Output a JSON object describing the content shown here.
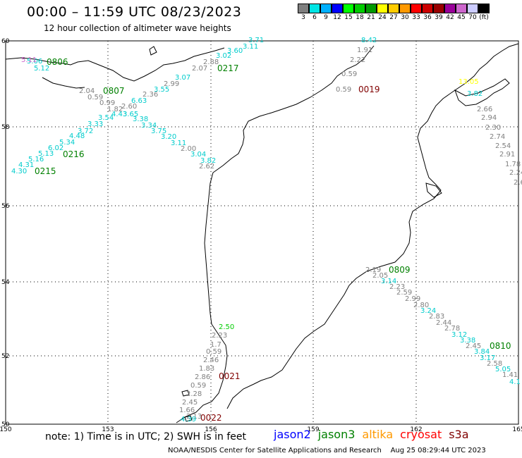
{
  "header": {
    "title": "00:00 – 11:59 UTC 08/23/2023",
    "subtitle": "12 hour collection of altimeter wave heights"
  },
  "scale": {
    "colors": [
      "#7f7f7f",
      "#00e5e5",
      "#00b0ff",
      "#0000ff",
      "#00ff00",
      "#00cc00",
      "#009900",
      "#ffff00",
      "#ffcc00",
      "#ff9900",
      "#ff0000",
      "#cc0000",
      "#990000",
      "#990099",
      "#cc66cc",
      "#ccccff",
      "#000000"
    ],
    "labels": [
      "3",
      "6",
      "9",
      "12",
      "15",
      "18",
      "21",
      "24",
      "27",
      "30",
      "33",
      "36",
      "39",
      "42",
      "45",
      "70",
      "(ft)"
    ]
  },
  "axes": {
    "lon_labels": [
      "150",
      "153",
      "156",
      "159",
      "162",
      "165"
    ],
    "lat_labels": [
      "60",
      "58",
      "56",
      "54",
      "52",
      "50"
    ]
  },
  "pass_labels": [
    {
      "text": "0806",
      "color": "#008000"
    },
    {
      "text": "0217",
      "color": "#008000"
    },
    {
      "text": "0807",
      "color": "#008000"
    },
    {
      "text": "0019",
      "color": "#800000"
    },
    {
      "text": "0216",
      "color": "#008000"
    },
    {
      "text": "0215",
      "color": "#008000"
    },
    {
      "text": "0809",
      "color": "#008000"
    },
    {
      "text": "0810",
      "color": "#008000"
    },
    {
      "text": "0021",
      "color": "#800000"
    },
    {
      "text": "0022",
      "color": "#800000"
    }
  ],
  "wave_values": [
    {
      "text": "3.71",
      "color": "#00cccc"
    },
    {
      "text": "3.11",
      "color": "#00cccc"
    },
    {
      "text": "3.60",
      "color": "#00cccc"
    },
    {
      "text": "3.02",
      "color": "#00cccc"
    },
    {
      "text": "2.88",
      "color": "#808080"
    },
    {
      "text": "2.07",
      "color": "#808080"
    },
    {
      "text": "3.07",
      "color": "#00cccc"
    },
    {
      "text": "2.99",
      "color": "#808080"
    },
    {
      "text": "3.55",
      "color": "#00cccc"
    },
    {
      "text": "2.04",
      "color": "#808080"
    },
    {
      "text": "2.36",
      "color": "#808080"
    },
    {
      "text": "0.59",
      "color": "#808080"
    },
    {
      "text": "0.99",
      "color": "#808080"
    },
    {
      "text": "6.63",
      "color": "#00cccc"
    },
    {
      "text": "2.60",
      "color": "#808080"
    },
    {
      "text": "1.82",
      "color": "#808080"
    },
    {
      "text": "4.43",
      "color": "#00cccc"
    },
    {
      "text": "3.65",
      "color": "#00cccc"
    },
    {
      "text": "3.54",
      "color": "#00cccc"
    },
    {
      "text": "3.38",
      "color": "#00cccc"
    },
    {
      "text": "3.33",
      "color": "#00cccc"
    },
    {
      "text": "3.34",
      "color": "#00cccc"
    },
    {
      "text": "3.72",
      "color": "#00cccc"
    },
    {
      "text": "3.75",
      "color": "#00cccc"
    },
    {
      "text": "4.48",
      "color": "#00cccc"
    },
    {
      "text": "3.20",
      "color": "#00cccc"
    },
    {
      "text": "5.34",
      "color": "#00cccc"
    },
    {
      "text": "3.11",
      "color": "#00cccc"
    },
    {
      "text": "6.02",
      "color": "#00cccc"
    },
    {
      "text": "2.00",
      "color": "#808080"
    },
    {
      "text": "5.13",
      "color": "#00cccc"
    },
    {
      "text": "3.04",
      "color": "#00cccc"
    },
    {
      "text": "5.16",
      "color": "#00cccc"
    },
    {
      "text": "3.82",
      "color": "#00cccc"
    },
    {
      "text": "4.31",
      "color": "#00cccc"
    },
    {
      "text": "2.62",
      "color": "#808080"
    },
    {
      "text": "4.30",
      "color": "#00cccc"
    },
    {
      "text": "5.06",
      "color": "#00cccc"
    },
    {
      "text": "5.12",
      "color": "#00cccc"
    },
    {
      "text": "5.11",
      "color": "#cc66cc"
    },
    {
      "text": "8.42",
      "color": "#00cccc"
    },
    {
      "text": "1.91",
      "color": "#808080"
    },
    {
      "text": "2.22",
      "color": "#808080"
    },
    {
      "text": "0.59",
      "color": "#808080"
    },
    {
      "text": "0.59",
      "color": "#808080"
    },
    {
      "text": "13.05",
      "color": "#ffff00"
    },
    {
      "text": "3.82",
      "color": "#00cccc"
    },
    {
      "text": "2.66",
      "color": "#808080"
    },
    {
      "text": "2.94",
      "color": "#808080"
    },
    {
      "text": "2.30",
      "color": "#808080"
    },
    {
      "text": "2.74",
      "color": "#808080"
    },
    {
      "text": "2.54",
      "color": "#808080"
    },
    {
      "text": "2.91",
      "color": "#808080"
    },
    {
      "text": "1.78",
      "color": "#808080"
    },
    {
      "text": "2.24",
      "color": "#808080"
    },
    {
      "text": "2.6",
      "color": "#808080"
    },
    {
      "text": "2.19",
      "color": "#808080"
    },
    {
      "text": "2.05",
      "color": "#808080"
    },
    {
      "text": "3.14",
      "color": "#00cccc"
    },
    {
      "text": "2.23",
      "color": "#808080"
    },
    {
      "text": "2.59",
      "color": "#808080"
    },
    {
      "text": "2.99",
      "color": "#808080"
    },
    {
      "text": "2.80",
      "color": "#808080"
    },
    {
      "text": "3.24",
      "color": "#00cccc"
    },
    {
      "text": "2.83",
      "color": "#808080"
    },
    {
      "text": "2.44",
      "color": "#808080"
    },
    {
      "text": "2.78",
      "color": "#808080"
    },
    {
      "text": "3.12",
      "color": "#00cccc"
    },
    {
      "text": "3.38",
      "color": "#00cccc"
    },
    {
      "text": "2.45",
      "color": "#808080"
    },
    {
      "text": "3.84",
      "color": "#00cccc"
    },
    {
      "text": "3.17",
      "color": "#00cccc"
    },
    {
      "text": "2.58",
      "color": "#808080"
    },
    {
      "text": "5.05",
      "color": "#00cccc"
    },
    {
      "text": "1.41",
      "color": "#808080"
    },
    {
      "text": "4.1",
      "color": "#00cccc"
    },
    {
      "text": "2.50",
      "color": "#00cc00"
    },
    {
      "text": "2.23",
      "color": "#808080"
    },
    {
      "text": "1.7",
      "color": "#808080"
    },
    {
      "text": "0.59",
      "color": "#808080"
    },
    {
      "text": "2.46",
      "color": "#808080"
    },
    {
      "text": "1.83",
      "color": "#808080"
    },
    {
      "text": "2.86",
      "color": "#808080"
    },
    {
      "text": "0.59",
      "color": "#808080"
    },
    {
      "text": "2.28",
      "color": "#808080"
    },
    {
      "text": "2.45",
      "color": "#808080"
    },
    {
      "text": "1.66",
      "color": "#808080"
    },
    {
      "text": "2.13",
      "color": "#808080"
    },
    {
      "text": "4.39",
      "color": "#00cccc"
    }
  ],
  "note": "note: 1) Time is in UTC; 2) SWH is in feet",
  "legend": [
    {
      "text": "jason2",
      "color": "#0000ff"
    },
    {
      "text": "jason3",
      "color": "#008000"
    },
    {
      "text": "altika",
      "color": "#ff9900"
    },
    {
      "text": "cryosat",
      "color": "#ff0000"
    },
    {
      "text": "s3a",
      "color": "#800000"
    }
  ],
  "footer": "NOAA/NESDIS Center for Satellite Applications and Research    Aug 25 08:29:44 UTC 2023"
}
